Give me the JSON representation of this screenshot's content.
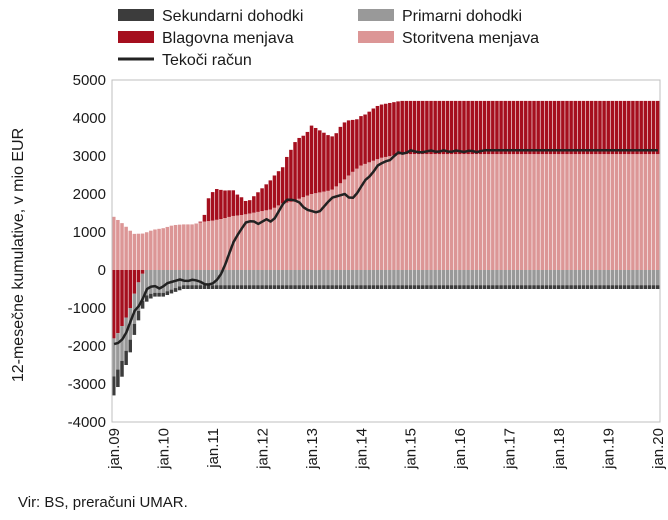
{
  "chart_data": {
    "type": "bar",
    "stacked": true,
    "ylabel": "12-mesečne kumulative, v mio EUR",
    "ylim": [
      -4000,
      5000
    ],
    "yticks": [
      -4000,
      -3000,
      -2000,
      -1000,
      0,
      1000,
      2000,
      3000,
      4000,
      5000
    ],
    "xticks": [
      "jan.09",
      "jan.10",
      "jan.11",
      "jan.12",
      "jan.13",
      "jan.14",
      "jan.15",
      "jan.16",
      "jan.17",
      "jan.18",
      "jan.19",
      "jan.20"
    ],
    "x_frequency": "monthly",
    "period": "jan.09 - jan.20",
    "grid": false,
    "legend_position": "top",
    "legend": [
      {
        "key": "sekundarni",
        "label": "Sekundarni dohodki",
        "type": "bar"
      },
      {
        "key": "primarni",
        "label": "Primarni dohodki",
        "type": "bar"
      },
      {
        "key": "blagovna",
        "label": "Blagovna menjava",
        "type": "bar"
      },
      {
        "key": "storitvena",
        "label": "Storitvena menjava",
        "type": "bar"
      },
      {
        "key": "tekoci",
        "label": "Tekoči račun",
        "type": "line"
      }
    ],
    "colors": {
      "sekundarni": "#3c3c3c",
      "primarni": "#999999",
      "blagovna": "#a50f1e",
      "storitvena": "#dc9696",
      "tekoci": "#222222"
    },
    "series_anchors": {
      "storitvena": [
        [
          0,
          1400
        ],
        [
          6,
          1200
        ],
        [
          12,
          950
        ],
        [
          18,
          960
        ],
        [
          24,
          1060
        ],
        [
          30,
          1100
        ],
        [
          36,
          1180
        ],
        [
          42,
          1200
        ],
        [
          48,
          1200
        ],
        [
          54,
          1270
        ],
        [
          60,
          1300
        ],
        [
          66,
          1350
        ],
        [
          72,
          1420
        ],
        [
          78,
          1450
        ],
        [
          84,
          1500
        ],
        [
          90,
          1550
        ],
        [
          96,
          1600
        ],
        [
          102,
          1750
        ],
        [
          108,
          1800
        ],
        [
          114,
          1900
        ],
        [
          120,
          2000
        ],
        [
          126,
          2050
        ],
        [
          132,
          2100
        ],
        [
          138,
          2300
        ],
        [
          144,
          2550
        ],
        [
          150,
          2750
        ],
        [
          156,
          2850
        ],
        [
          162,
          2950
        ],
        [
          168,
          3000
        ],
        [
          174,
          3050
        ],
        [
          180,
          3050
        ],
        [
          186,
          3050
        ],
        [
          192,
          3050
        ],
        [
          198,
          3050
        ],
        [
          204,
          3050
        ],
        [
          210,
          3050
        ],
        [
          216,
          3050
        ],
        [
          222,
          3050
        ],
        [
          228,
          3050
        ],
        [
          234,
          3050
        ],
        [
          240,
          3050
        ],
        [
          246,
          3050
        ],
        [
          252,
          3050
        ],
        [
          258,
          3050
        ],
        [
          264,
          3050
        ],
        [
          270,
          3050
        ],
        [
          276,
          3050
        ],
        [
          282,
          3050
        ],
        [
          288,
          3050
        ],
        [
          294,
          3050
        ],
        [
          300,
          3050
        ],
        [
          306,
          3050
        ],
        [
          312,
          3050
        ],
        [
          318,
          3050
        ],
        [
          324,
          3050
        ],
        [
          330,
          3050
        ]
      ],
      "blagovna": [
        [
          0,
          -1800
        ],
        [
          2,
          -1700
        ],
        [
          6,
          -1400
        ],
        [
          10,
          -1000
        ],
        [
          12,
          -700
        ],
        [
          14,
          -400
        ],
        [
          16,
          -250
        ],
        [
          18,
          -50
        ],
        [
          20,
          0
        ],
        [
          24,
          0
        ],
        [
          30,
          0
        ],
        [
          36,
          0
        ],
        [
          42,
          0
        ],
        [
          48,
          0
        ],
        [
          50,
          0
        ],
        [
          52,
          10
        ],
        [
          54,
          50
        ],
        [
          56,
          300
        ],
        [
          57,
          550
        ],
        [
          58,
          650
        ],
        [
          60,
          750
        ],
        [
          61,
          840
        ],
        [
          63,
          800
        ],
        [
          66,
          750
        ],
        [
          69,
          700
        ],
        [
          72,
          700
        ],
        [
          75,
          550
        ],
        [
          78,
          450
        ],
        [
          81,
          300
        ],
        [
          84,
          400
        ],
        [
          87,
          500
        ],
        [
          90,
          600
        ],
        [
          93,
          700
        ],
        [
          96,
          800
        ],
        [
          99,
          900
        ],
        [
          102,
          900
        ],
        [
          105,
          1200
        ],
        [
          108,
          1400
        ],
        [
          111,
          1600
        ],
        [
          114,
          1600
        ],
        [
          117,
          1650
        ],
        [
          120,
          1800
        ],
        [
          123,
          1700
        ],
        [
          126,
          1600
        ],
        [
          129,
          1500
        ],
        [
          132,
          1400
        ],
        [
          135,
          1400
        ],
        [
          138,
          1500
        ],
        [
          141,
          1500
        ],
        [
          144,
          1400
        ],
        [
          147,
          1300
        ],
        [
          150,
          1300
        ],
        [
          153,
          1300
        ],
        [
          156,
          1350
        ],
        [
          159,
          1400
        ],
        [
          162,
          1400
        ],
        [
          165,
          1400
        ],
        [
          168,
          1400
        ],
        [
          171,
          1400
        ],
        [
          174,
          1400
        ],
        [
          177,
          1400
        ],
        [
          180,
          1400
        ],
        [
          183,
          1400
        ],
        [
          186,
          1400
        ],
        [
          189,
          1400
        ],
        [
          192,
          1400
        ],
        [
          195,
          1400
        ],
        [
          198,
          1400
        ],
        [
          201,
          1400
        ],
        [
          204,
          1400
        ],
        [
          207,
          1400
        ],
        [
          210,
          1400
        ],
        [
          213,
          1400
        ],
        [
          216,
          1400
        ],
        [
          219,
          1400
        ],
        [
          222,
          1400
        ],
        [
          225,
          1400
        ],
        [
          228,
          1400
        ],
        [
          231,
          1400
        ],
        [
          234,
          1400
        ],
        [
          237,
          1400
        ],
        [
          240,
          1400
        ],
        [
          243,
          1400
        ],
        [
          246,
          1400
        ],
        [
          249,
          1400
        ],
        [
          252,
          1400
        ],
        [
          255,
          1400
        ],
        [
          258,
          1400
        ],
        [
          261,
          1400
        ],
        [
          264,
          1400
        ],
        [
          267,
          1400
        ],
        [
          270,
          1400
        ],
        [
          273,
          1400
        ],
        [
          276,
          1400
        ],
        [
          279,
          1400
        ],
        [
          282,
          1400
        ],
        [
          285,
          1400
        ],
        [
          288,
          1400
        ],
        [
          291,
          1400
        ],
        [
          294,
          1400
        ],
        [
          297,
          1400
        ],
        [
          300,
          1400
        ],
        [
          303,
          1400
        ],
        [
          306,
          1400
        ],
        [
          309,
          1400
        ],
        [
          312,
          1400
        ],
        [
          315,
          1400
        ],
        [
          318,
          1400
        ],
        [
          321,
          1400
        ],
        [
          324,
          1400
        ],
        [
          327,
          1400
        ],
        [
          330,
          1400
        ]
      ],
      "primarni": [
        [
          0,
          -1000
        ],
        [
          6,
          -900
        ],
        [
          12,
          -800
        ],
        [
          18,
          -700
        ],
        [
          24,
          -600
        ],
        [
          30,
          -600
        ],
        [
          36,
          -500
        ],
        [
          42,
          -400
        ],
        [
          48,
          -400
        ],
        [
          54,
          -400
        ],
        [
          60,
          -400
        ],
        [
          66,
          -400
        ],
        [
          72,
          -400
        ],
        [
          78,
          -400
        ],
        [
          84,
          -400
        ],
        [
          90,
          -400
        ],
        [
          96,
          -400
        ],
        [
          102,
          -400
        ],
        [
          108,
          -400
        ],
        [
          114,
          -400
        ],
        [
          120,
          -400
        ],
        [
          126,
          -400
        ],
        [
          132,
          -400
        ],
        [
          138,
          -400
        ],
        [
          144,
          -400
        ],
        [
          150,
          -400
        ],
        [
          156,
          -400
        ],
        [
          162,
          -400
        ],
        [
          168,
          -400
        ],
        [
          174,
          -400
        ],
        [
          180,
          -400
        ],
        [
          186,
          -400
        ],
        [
          192,
          -400
        ],
        [
          198,
          -400
        ],
        [
          204,
          -400
        ],
        [
          210,
          -400
        ],
        [
          216,
          -400
        ],
        [
          222,
          -400
        ],
        [
          228,
          -400
        ],
        [
          234,
          -400
        ],
        [
          240,
          -400
        ],
        [
          246,
          -400
        ],
        [
          252,
          -400
        ],
        [
          258,
          -400
        ],
        [
          264,
          -400
        ],
        [
          270,
          -400
        ],
        [
          276,
          -400
        ],
        [
          282,
          -400
        ],
        [
          288,
          -400
        ],
        [
          294,
          -400
        ],
        [
          300,
          -400
        ],
        [
          306,
          -400
        ],
        [
          312,
          -400
        ],
        [
          318,
          -400
        ],
        [
          324,
          -400
        ],
        [
          330,
          -400
        ]
      ],
      "sekundarni": [
        [
          0,
          -500
        ],
        [
          6,
          -400
        ],
        [
          12,
          -300
        ],
        [
          18,
          -200
        ],
        [
          24,
          -100
        ],
        [
          30,
          -100
        ],
        [
          36,
          -100
        ],
        [
          42,
          -100
        ],
        [
          48,
          -100
        ],
        [
          54,
          -100
        ],
        [
          60,
          -100
        ],
        [
          66,
          -100
        ],
        [
          72,
          -100
        ],
        [
          78,
          -100
        ],
        [
          84,
          -100
        ],
        [
          90,
          -100
        ],
        [
          96,
          -100
        ],
        [
          102,
          -100
        ],
        [
          108,
          -100
        ],
        [
          114,
          -100
        ],
        [
          120,
          -100
        ],
        [
          126,
          -100
        ],
        [
          132,
          -100
        ],
        [
          138,
          -100
        ],
        [
          144,
          -100
        ],
        [
          150,
          -100
        ],
        [
          156,
          -100
        ],
        [
          162,
          -100
        ],
        [
          168,
          -100
        ],
        [
          174,
          -100
        ],
        [
          180,
          -100
        ],
        [
          186,
          -100
        ],
        [
          192,
          -100
        ],
        [
          198,
          -100
        ],
        [
          204,
          -100
        ],
        [
          210,
          -100
        ],
        [
          216,
          -100
        ],
        [
          222,
          -100
        ],
        [
          228,
          -100
        ],
        [
          234,
          -100
        ],
        [
          240,
          -100
        ],
        [
          246,
          -100
        ],
        [
          252,
          -100
        ],
        [
          258,
          -100
        ],
        [
          264,
          -100
        ],
        [
          270,
          -100
        ],
        [
          276,
          -100
        ],
        [
          282,
          -100
        ],
        [
          288,
          -100
        ],
        [
          294,
          -100
        ],
        [
          300,
          -100
        ],
        [
          306,
          -100
        ],
        [
          312,
          -100
        ],
        [
          318,
          -100
        ],
        [
          324,
          -100
        ],
        [
          330,
          -100
        ]
      ]
    },
    "current_account_line": [
      [
        0,
        -1950
      ],
      [
        4,
        -1900
      ],
      [
        8,
        -1600
      ],
      [
        12,
        -1100
      ],
      [
        16,
        -900
      ],
      [
        20,
        -500
      ],
      [
        24,
        -400
      ],
      [
        28,
        -500
      ],
      [
        32,
        -350
      ],
      [
        36,
        -300
      ],
      [
        40,
        -250
      ],
      [
        44,
        -300
      ],
      [
        48,
        -250
      ],
      [
        52,
        -300
      ],
      [
        56,
        -400
      ],
      [
        60,
        -350
      ],
      [
        64,
        -200
      ],
      [
        68,
        200
      ],
      [
        72,
        700
      ],
      [
        76,
        1000
      ],
      [
        80,
        1250
      ],
      [
        84,
        1300
      ],
      [
        88,
        1200
      ],
      [
        92,
        1350
      ],
      [
        96,
        1250
      ],
      [
        100,
        1550
      ],
      [
        104,
        1850
      ],
      [
        108,
        1850
      ],
      [
        112,
        1800
      ],
      [
        116,
        1600
      ],
      [
        120,
        1550
      ],
      [
        124,
        1500
      ],
      [
        128,
        1700
      ],
      [
        132,
        1900
      ],
      [
        136,
        1950
      ],
      [
        140,
        2000
      ],
      [
        144,
        1850
      ],
      [
        148,
        2050
      ],
      [
        152,
        2350
      ],
      [
        156,
        2500
      ],
      [
        160,
        2750
      ],
      [
        164,
        2850
      ],
      [
        168,
        2900
      ],
      [
        172,
        3100
      ],
      [
        176,
        3050
      ],
      [
        180,
        3150
      ],
      [
        184,
        3100
      ],
      [
        188,
        3100
      ],
      [
        192,
        3150
      ],
      [
        196,
        3100
      ],
      [
        200,
        3150
      ],
      [
        204,
        3100
      ],
      [
        208,
        3150
      ],
      [
        212,
        3100
      ],
      [
        216,
        3150
      ],
      [
        220,
        3100
      ],
      [
        224,
        3150
      ],
      [
        228,
        3150
      ],
      [
        232,
        3150
      ],
      [
        236,
        3150
      ],
      [
        240,
        3150
      ],
      [
        244,
        3150
      ],
      [
        248,
        3150
      ],
      [
        252,
        3150
      ],
      [
        256,
        3150
      ],
      [
        260,
        3150
      ],
      [
        264,
        3150
      ],
      [
        268,
        3150
      ],
      [
        272,
        3150
      ],
      [
        276,
        3150
      ],
      [
        280,
        3150
      ],
      [
        284,
        3150
      ],
      [
        288,
        3150
      ],
      [
        292,
        3150
      ],
      [
        296,
        3150
      ],
      [
        300,
        3150
      ],
      [
        304,
        3150
      ],
      [
        308,
        3150
      ],
      [
        312,
        3150
      ],
      [
        316,
        3150
      ],
      [
        320,
        3150
      ],
      [
        324,
        3150
      ],
      [
        328,
        3150
      ],
      [
        330,
        3150
      ]
    ]
  },
  "source": "Vir: BS, preračuni UMAR."
}
